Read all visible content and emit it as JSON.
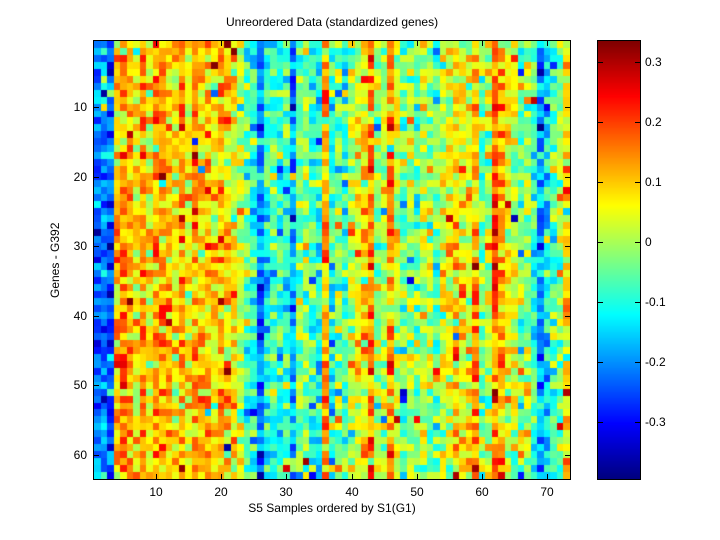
{
  "chart_data": {
    "type": "heatmap",
    "title": "Unreordered Data (standardized genes)",
    "xlabel": "S5 Samples ordered by S1(G1)",
    "ylabel": "Genes - G392",
    "n_rows": 63,
    "n_cols": 73,
    "x_ticks": [
      10,
      20,
      30,
      40,
      50,
      60,
      70
    ],
    "y_ticks": [
      10,
      20,
      30,
      40,
      50,
      60
    ],
    "colorbar_ticks": [
      0.3,
      0.2,
      0.1,
      0,
      -0.1,
      -0.2,
      -0.3
    ],
    "value_range": [
      -0.395,
      0.335
    ],
    "colormap": "jet",
    "legend_position": "right-colorbar",
    "grid": false,
    "column_means": [
      -0.22,
      -0.19,
      -0.24,
      0.1,
      0.15,
      0.12,
      0.06,
      0.14,
      0.05,
      0.11,
      0.13,
      0.1,
      0.07,
      0.12,
      0.05,
      0.13,
      0.08,
      0.11,
      0.06,
      0.12,
      0.1,
      0.07,
      0.02,
      -0.07,
      -0.1,
      -0.21,
      -0.1,
      -0.07,
      -0.1,
      -0.08,
      -0.18,
      -0.05,
      -0.02,
      -0.09,
      -0.11,
      0.14,
      -0.11,
      -0.02,
      -0.06,
      0.02,
      0.05,
      0.08,
      0.16,
      0.0,
      0.01,
      0.15,
      0.02,
      -0.04,
      0.0,
      -0.04,
      0.01,
      -0.02,
      -0.05,
      0.03,
      0.06,
      0.08,
      0.06,
      0.04,
      0.13,
      -0.03,
      0.01,
      0.17,
      0.12,
      0.04,
      0.01,
      -0.04,
      -0.01,
      -0.08,
      -0.2,
      -0.14,
      -0.07,
      -0.02,
      0.07
    ],
    "noise_std": 0.065,
    "outlier_prob": 0.05,
    "outlier_scale": 2.3,
    "random_seed": 20417
  },
  "colors": {
    "background": "#ffffff",
    "frame": "#000000",
    "text": "#000000"
  }
}
